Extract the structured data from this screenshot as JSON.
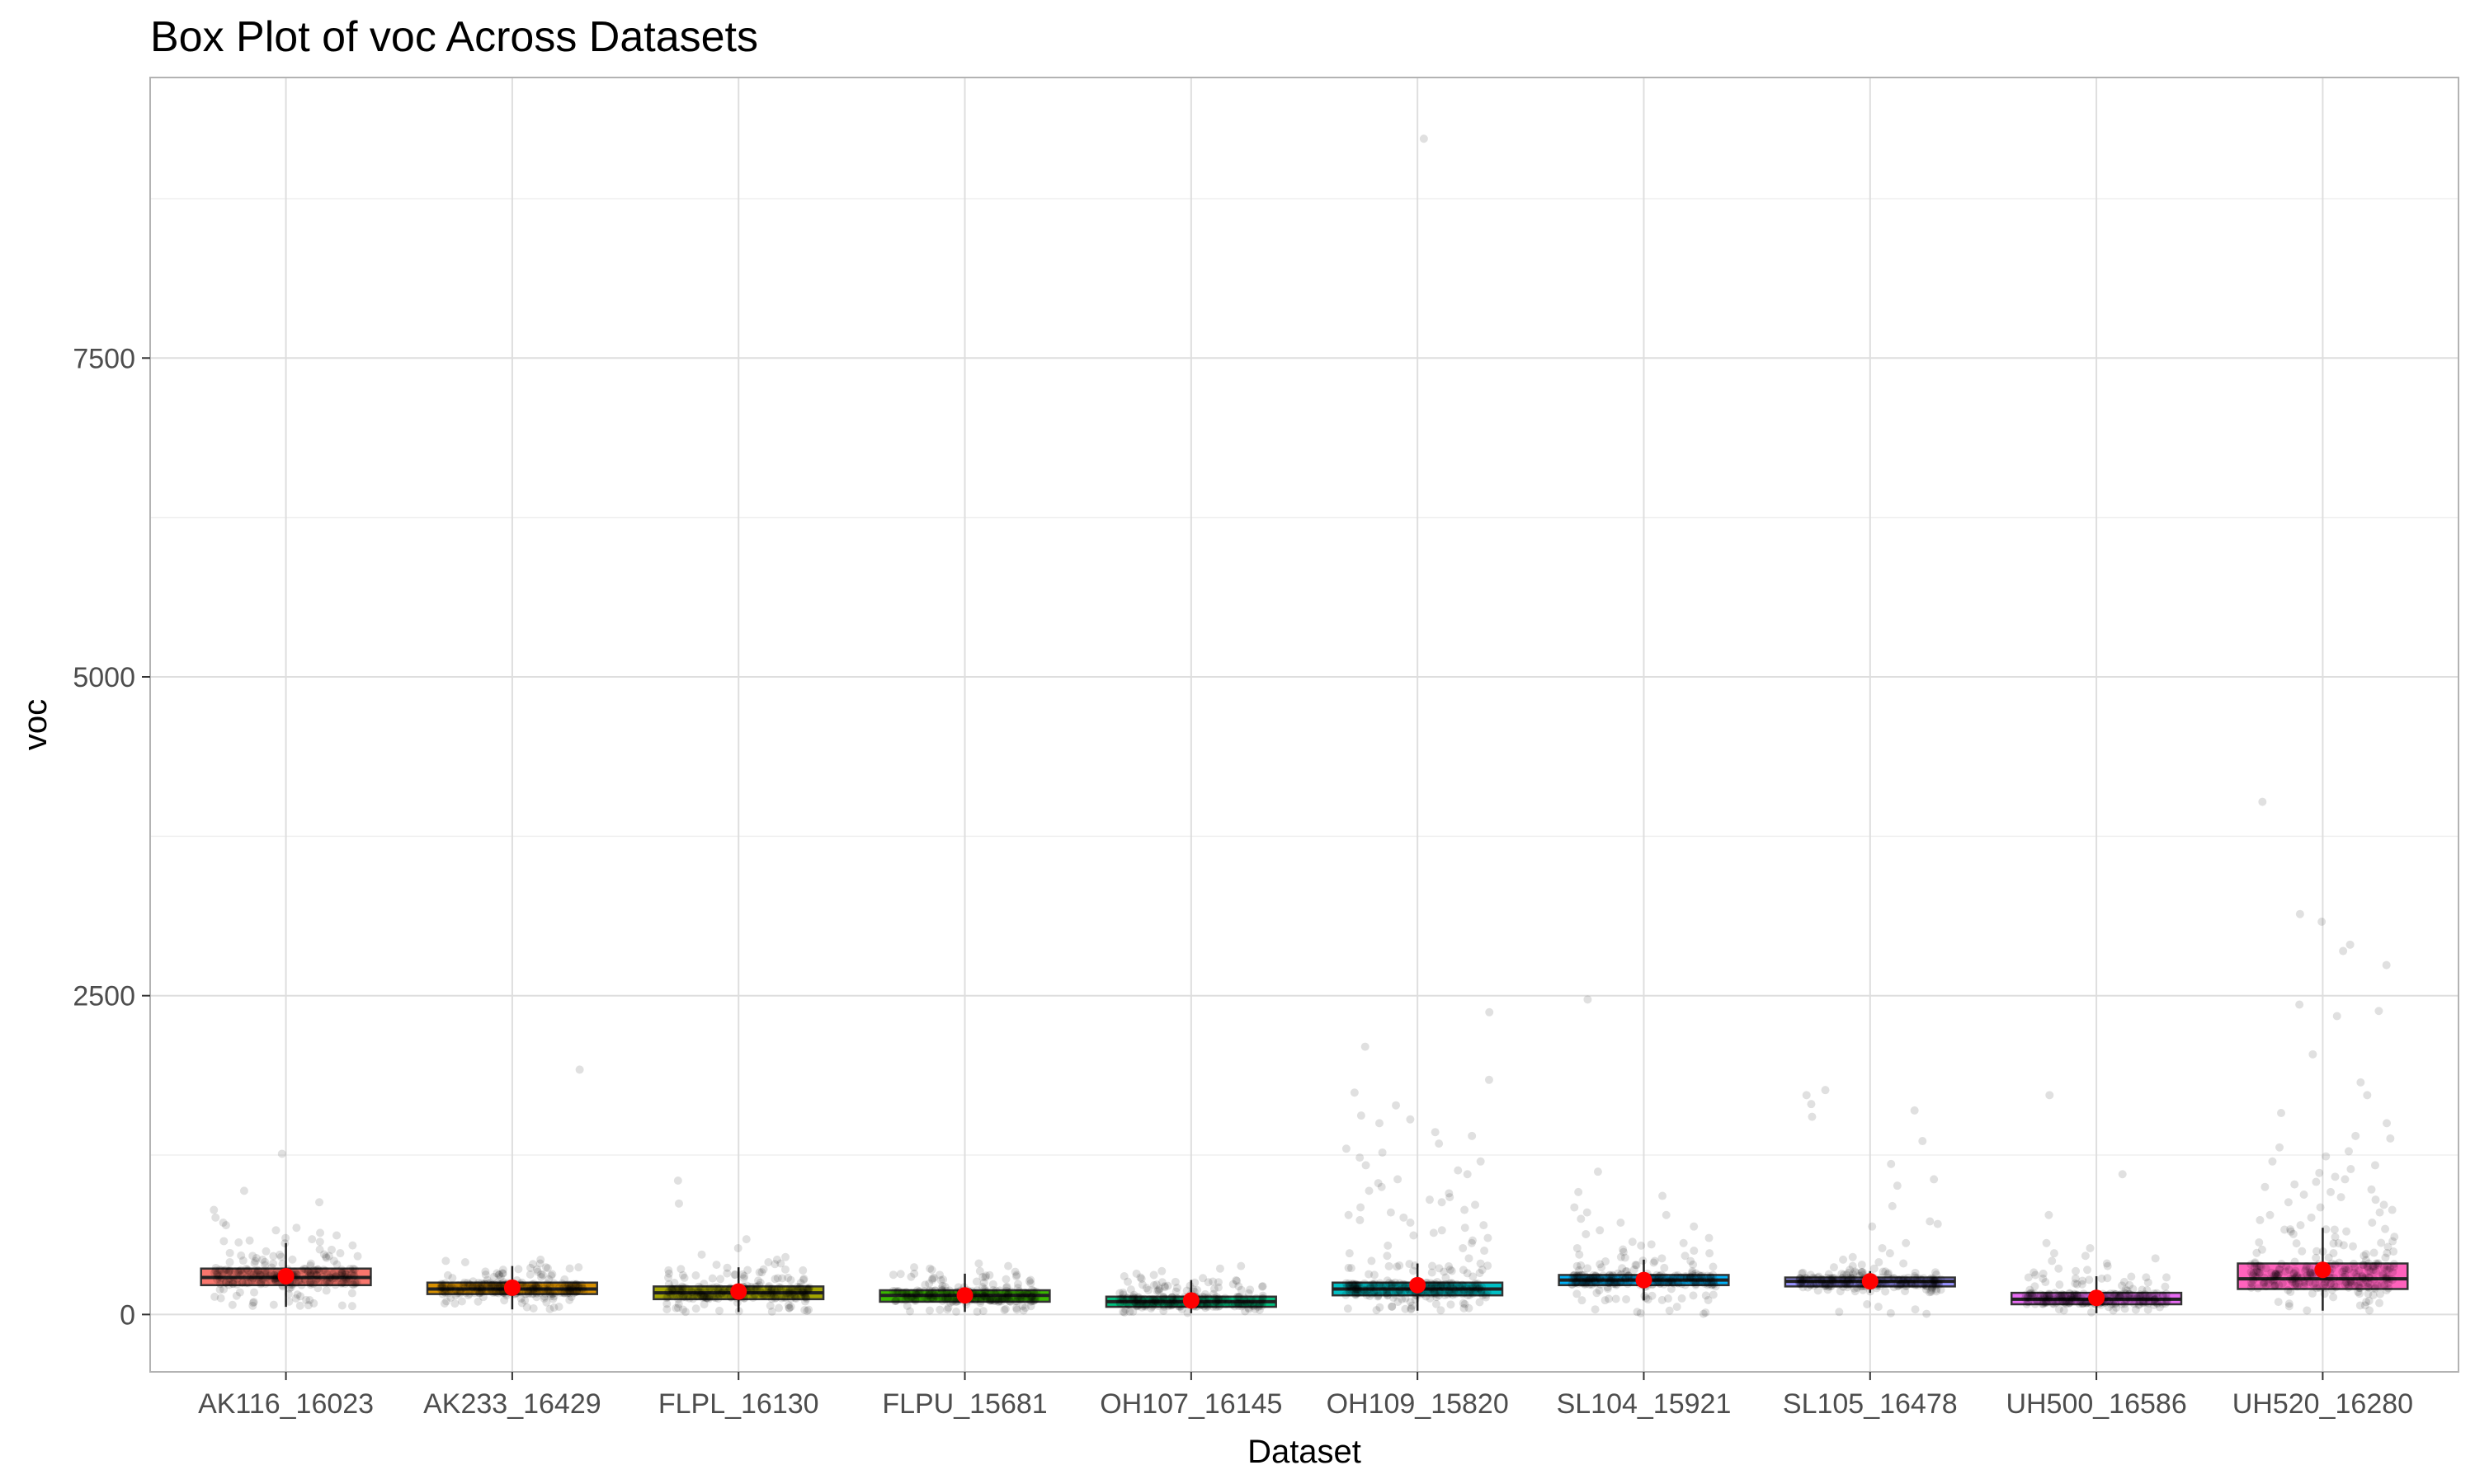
{
  "chart_data": {
    "type": "box",
    "title": "Box Plot of voc Across Datasets",
    "xlabel": "Dataset",
    "ylabel": "voc",
    "ylim": [
      -450,
      9700
    ],
    "yticks": [
      0,
      2500,
      5000,
      7500
    ],
    "ytick_labels": [
      "0",
      "2500",
      "5000",
      "7500"
    ],
    "grid": true,
    "legend": "none",
    "categories": [
      "AK116_16023",
      "AK233_16429",
      "FLPL_16130",
      "FLPU_15681",
      "OH107_16145",
      "OH109_15820",
      "SL104_15921",
      "SL105_16478",
      "UH500_16586",
      "UH520_16280"
    ],
    "colors": [
      "#F8766D",
      "#D89000",
      "#A3A500",
      "#39B600",
      "#00BF7D",
      "#00BFC4",
      "#00B0F6",
      "#9590FF",
      "#E76BF3",
      "#FF62BC"
    ],
    "mean_color": "#FF0000",
    "series": [
      {
        "q1": 230,
        "median": 290,
        "q3": 360,
        "mean": 300,
        "whisker_low": 60,
        "whisker_high": 560,
        "outliers": [
          1260,
          970,
          880,
          820,
          760,
          720,
          700,
          680,
          660,
          640,
          620,
          600,
          590,
          580,
          575,
          570,
          565
        ]
      },
      {
        "q1": 160,
        "median": 200,
        "q3": 250,
        "mean": 210,
        "whisker_low": 40,
        "whisker_high": 380,
        "outliers": [
          1920,
          430,
          420,
          410,
          400,
          395
        ]
      },
      {
        "q1": 120,
        "median": 170,
        "q3": 220,
        "mean": 180,
        "whisker_low": 20,
        "whisker_high": 370,
        "outliers": [
          1050,
          870,
          590,
          520,
          470,
          450,
          430,
          410,
          400,
          395,
          390
        ]
      },
      {
        "q1": 100,
        "median": 150,
        "q3": 190,
        "mean": 150,
        "whisker_low": 20,
        "whisker_high": 320,
        "outliers": [
          400,
          380,
          370,
          360,
          350,
          340,
          335
        ]
      },
      {
        "q1": 60,
        "median": 100,
        "q3": 140,
        "mean": 110,
        "whisker_low": 10,
        "whisker_high": 270,
        "outliers": [
          380,
          360,
          340,
          320,
          310,
          300,
          290,
          285,
          280
        ]
      },
      {
        "q1": 150,
        "median": 200,
        "q3": 250,
        "mean": 230,
        "whisker_low": 30,
        "whisker_high": 400,
        "outliers": [
          9220,
          2370,
          2100,
          1840,
          1740,
          1640,
          1560,
          1530,
          1500,
          1430,
          1400,
          1340,
          1300,
          1270,
          1230,
          1200,
          1170,
          1130,
          1100,
          1060,
          1030,
          1000,
          970,
          950,
          920,
          900,
          880,
          860,
          840,
          820,
          800,
          780,
          760,
          740,
          720,
          700,
          680,
          660,
          640,
          620,
          600,
          580,
          560,
          540,
          520,
          500,
          480,
          460,
          440,
          420
        ]
      },
      {
        "q1": 230,
        "median": 270,
        "q3": 310,
        "mean": 270,
        "whisker_low": 110,
        "whisker_high": 430,
        "outliers": [
          2470,
          1120,
          960,
          930,
          840,
          800,
          780,
          750,
          720,
          690,
          660,
          630,
          600,
          570,
          560,
          550,
          540,
          520,
          510,
          500,
          490,
          480,
          470,
          460,
          450,
          445,
          440,
          60,
          40,
          30,
          20,
          15,
          10,
          5
        ]
      },
      {
        "q1": 220,
        "median": 260,
        "q3": 290,
        "mean": 260,
        "whisker_low": 170,
        "whisker_high": 340,
        "outliers": [
          1760,
          1720,
          1650,
          1600,
          1550,
          1360,
          1180,
          1060,
          1010,
          850,
          730,
          710,
          690,
          560,
          520,
          480,
          450,
          430,
          410,
          400,
          390,
          380,
          370,
          360,
          350,
          80,
          60,
          40,
          20,
          10,
          5
        ]
      },
      {
        "q1": 80,
        "median": 120,
        "q3": 170,
        "mean": 130,
        "whisker_low": 10,
        "whisker_high": 300,
        "outliers": [
          1720,
          1100,
          780,
          560,
          520,
          480,
          460,
          440,
          420,
          400,
          380,
          360,
          350,
          340,
          330,
          320,
          310
        ]
      },
      {
        "q1": 200,
        "median": 280,
        "q3": 400,
        "mean": 350,
        "whisker_low": 30,
        "whisker_high": 680,
        "outliers": [
          4020,
          3140,
          3080,
          2900,
          2850,
          2740,
          2430,
          2380,
          2340,
          2040,
          1820,
          1720,
          1580,
          1500,
          1400,
          1380,
          1310,
          1280,
          1240,
          1200,
          1170,
          1140,
          1110,
          1080,
          1060,
          1040,
          1020,
          1000,
          980,
          960,
          940,
          920,
          900,
          880,
          860,
          840,
          820,
          800,
          780,
          760,
          740,
          720,
          700
        ]
      }
    ]
  }
}
